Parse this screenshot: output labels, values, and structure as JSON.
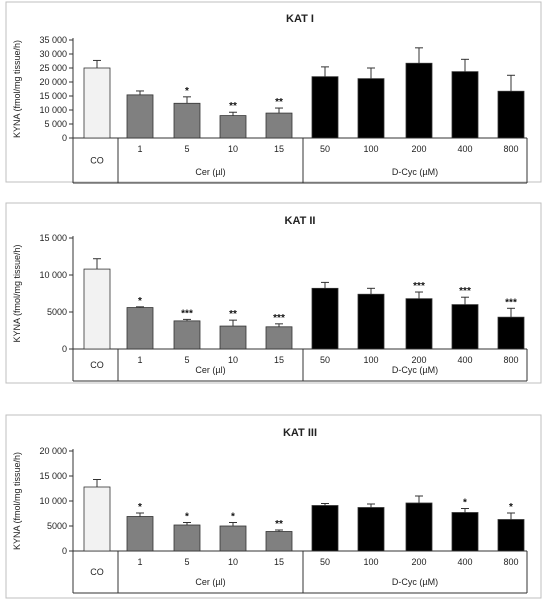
{
  "chart_data": [
    {
      "type": "bar",
      "title": "KAT I",
      "ylabel": "KYNA (fmol/mg tissue/h)",
      "yticks": [
        "0",
        "5 000",
        "10 000",
        "15 000",
        "20 000",
        "25 000",
        "30 000",
        "35 000"
      ],
      "ylim": [
        0,
        35000
      ],
      "categories": [
        "CO",
        "1",
        "5",
        "10",
        "15",
        "50",
        "100",
        "200",
        "400",
        "800"
      ],
      "values": [
        25000,
        15400,
        12400,
        8000,
        8900,
        21900,
        21200,
        26700,
        23700,
        16700
      ],
      "errors": [
        2700,
        1400,
        2300,
        1200,
        1800,
        3500,
        3800,
        5500,
        4400,
        5700
      ],
      "significance": [
        "",
        "",
        "*",
        "**",
        "**",
        "",
        "",
        "",
        "",
        ""
      ],
      "groups": [
        "CO",
        "Cer (µl)",
        "D-Cyc (µM)"
      ]
    },
    {
      "type": "bar",
      "title": "KAT II",
      "ylabel": "KYNA (fmol/mg tissue/h)",
      "yticks": [
        "0",
        "5000",
        "10 000",
        "15 000"
      ],
      "ylim": [
        0,
        15000
      ],
      "categories": [
        "CO",
        "1",
        "5",
        "10",
        "15",
        "50",
        "100",
        "200",
        "400",
        "800"
      ],
      "values": [
        10800,
        5600,
        3800,
        3100,
        3000,
        8200,
        7400,
        6800,
        6000,
        4300
      ],
      "errors": [
        1400,
        100,
        200,
        800,
        400,
        800,
        800,
        900,
        1000,
        1200
      ],
      "significance": [
        "",
        "*",
        "***",
        "**",
        "***",
        "",
        "",
        "***",
        "***",
        "***"
      ],
      "groups": [
        "CO",
        "Cer (µl)",
        "D-Cyc (µM)"
      ]
    },
    {
      "type": "bar",
      "title": "KAT III",
      "ylabel": "KYNA (fmol/mg tissue/h)",
      "yticks": [
        "0",
        "5000",
        "10 000",
        "15 000",
        "20 000"
      ],
      "ylim": [
        0,
        20000
      ],
      "categories": [
        "CO",
        "1",
        "5",
        "10",
        "15",
        "50",
        "100",
        "200",
        "400",
        "800"
      ],
      "values": [
        12800,
        6900,
        5200,
        5000,
        3900,
        9100,
        8700,
        9600,
        7700,
        6300
      ],
      "errors": [
        1500,
        700,
        500,
        700,
        300,
        400,
        700,
        1400,
        800,
        1300
      ],
      "significance": [
        "",
        "*",
        "*",
        "*",
        "**",
        "",
        "",
        "",
        "*",
        "*"
      ],
      "groups": [
        "CO",
        "Cer (µl)",
        "D-Cyc (µM)"
      ]
    }
  ],
  "colors": {
    "control": "#f2f2f2",
    "cer": "#808080",
    "dcyc": "#000000",
    "frame": "#bfbfbf"
  }
}
